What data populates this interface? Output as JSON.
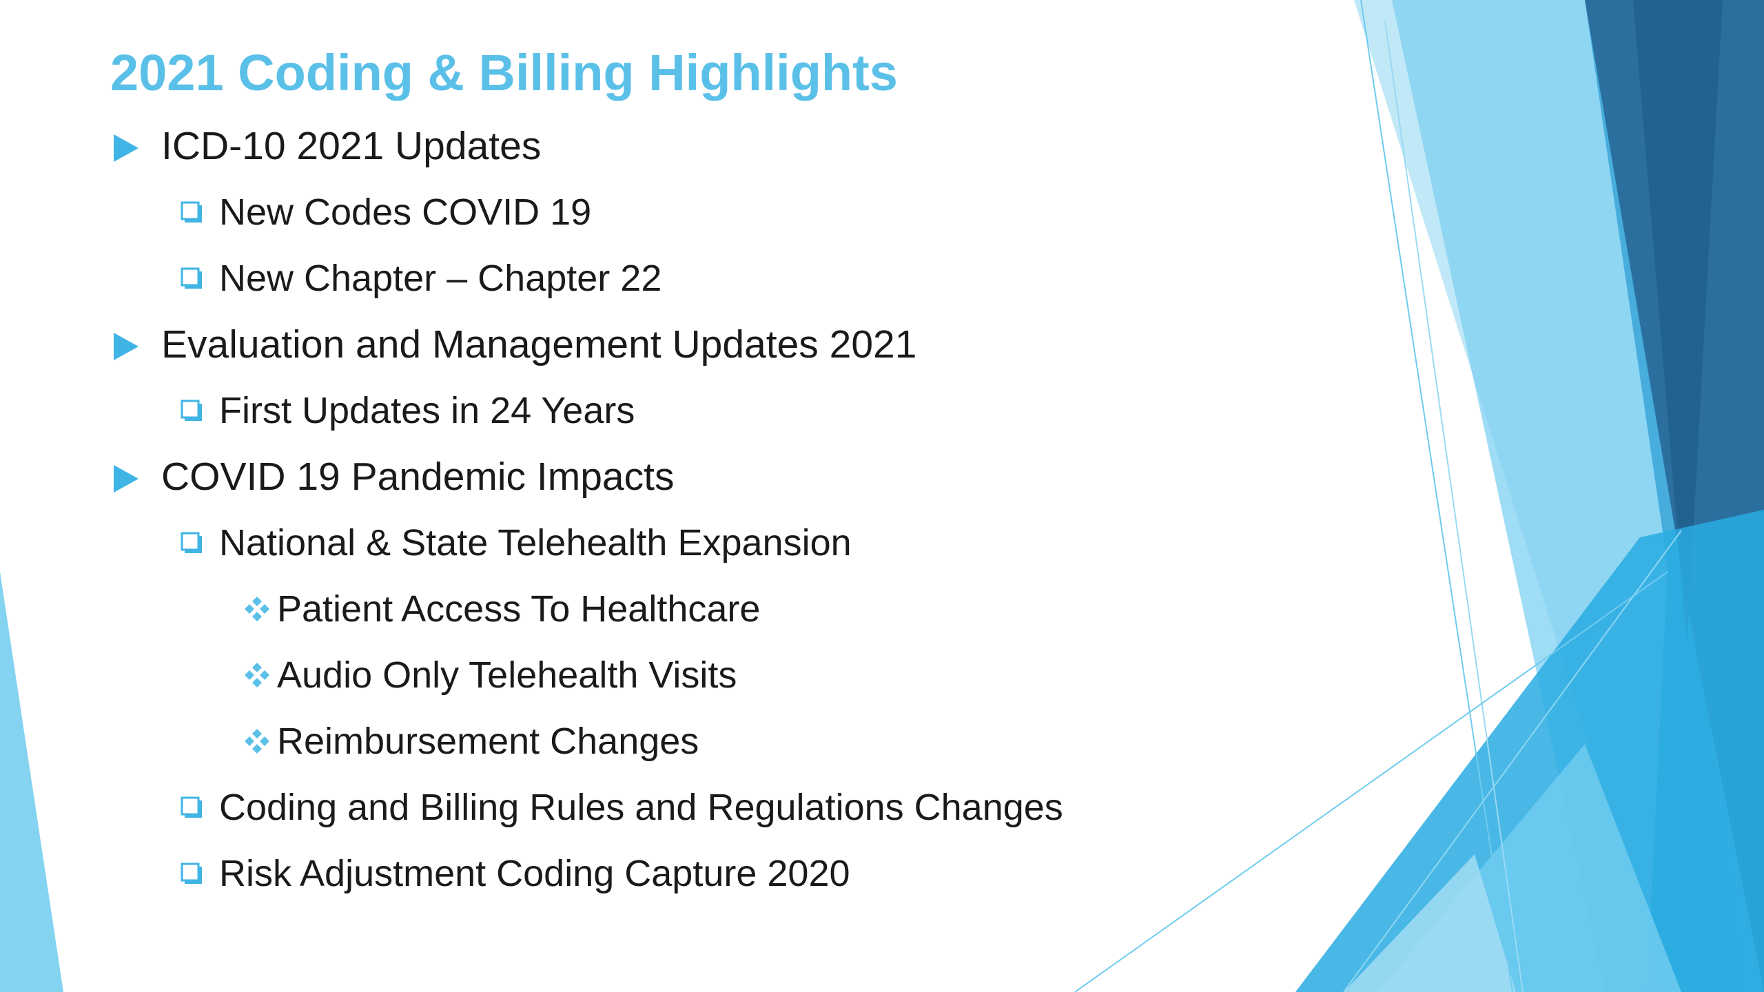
{
  "slide": {
    "title": "2021 Coding & Billing Highlights",
    "items": [
      {
        "level": 1,
        "marker": "triangle-bullet-icon",
        "text": "ICD-10 2021 Updates"
      },
      {
        "level": 2,
        "marker": "square-bullet-icon",
        "text": "New Codes COVID 19"
      },
      {
        "level": 2,
        "marker": "square-bullet-icon",
        "text": "New Chapter – Chapter 22"
      },
      {
        "level": 1,
        "marker": "triangle-bullet-icon",
        "text": "Evaluation and Management Updates 2021"
      },
      {
        "level": 2,
        "marker": "square-bullet-icon",
        "text": "First Updates in 24 Years"
      },
      {
        "level": 1,
        "marker": "triangle-bullet-icon",
        "text": "COVID 19 Pandemic Impacts"
      },
      {
        "level": 2,
        "marker": "square-bullet-icon",
        "text": "National & State Telehealth Expansion"
      },
      {
        "level": 3,
        "marker": "diamond-bullet-icon",
        "text": "Patient Access To Healthcare"
      },
      {
        "level": 3,
        "marker": "diamond-bullet-icon",
        "text": "Audio Only Telehealth Visits"
      },
      {
        "level": 3,
        "marker": "diamond-bullet-icon",
        "text": "Reimbursement Changes"
      },
      {
        "level": 2,
        "marker": "square-bullet-icon",
        "text": "Coding and Billing Rules and Regulations Changes"
      },
      {
        "level": 2,
        "marker": "square-bullet-icon",
        "text": "Risk Adjustment Coding Capture 2020"
      }
    ]
  },
  "theme": {
    "title_color": "#5bc0e8",
    "bullet_color": "#40b4e5",
    "text_color": "#1a1a1a"
  }
}
